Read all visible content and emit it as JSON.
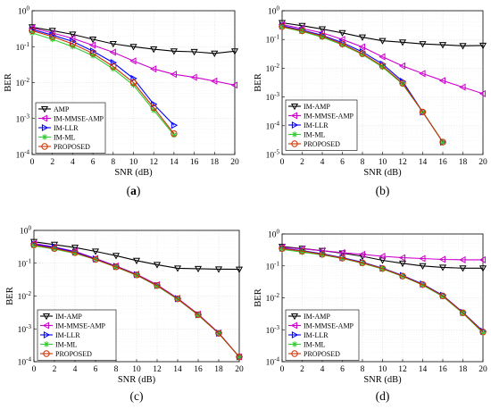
{
  "chart_data": [
    {
      "type": "line",
      "panel_label": "(a)",
      "xlabel": "SNR (dB)",
      "ylabel": "BER",
      "xlim": [
        0,
        20
      ],
      "ylim_log10": [
        -4,
        0
      ],
      "yscale": "log",
      "grid": true,
      "legend_placement": "bottom-left",
      "xticks": [
        "0",
        "2",
        "4",
        "6",
        "8",
        "10",
        "12",
        "14",
        "16",
        "18",
        "20"
      ],
      "yticks": [
        "10^0",
        "10^-1",
        "10^-2",
        "10^-3",
        "10^-4"
      ],
      "series": [
        {
          "name": "AMP",
          "color": "#000000",
          "marker": "tri-down",
          "x": [
            0,
            2,
            4,
            6,
            8,
            10,
            12,
            14,
            16,
            18,
            20
          ],
          "y": [
            0.35,
            0.28,
            0.22,
            0.16,
            0.12,
            0.1,
            0.085,
            0.075,
            0.072,
            0.065,
            0.075
          ]
        },
        {
          "name": "IM-MMSE-AMP",
          "color": "#cc00cc",
          "marker": "tri-left",
          "x": [
            0,
            2,
            4,
            6,
            8,
            10,
            12,
            14,
            16,
            18,
            20
          ],
          "y": [
            0.33,
            0.24,
            0.17,
            0.11,
            0.07,
            0.04,
            0.024,
            0.017,
            0.014,
            0.011,
            0.0085
          ]
        },
        {
          "name": "IM-LLR",
          "color": "#0000ff",
          "marker": "tri-right",
          "x": [
            0,
            2,
            4,
            6,
            8,
            10,
            12,
            14
          ],
          "y": [
            0.3,
            0.21,
            0.14,
            0.075,
            0.036,
            0.013,
            0.0025,
            0.00065
          ]
        },
        {
          "name": "IM-ML",
          "color": "#33cc33",
          "marker": "asterisk",
          "x": [
            0,
            2,
            4,
            6,
            8,
            10,
            12,
            14
          ],
          "y": [
            0.24,
            0.16,
            0.1,
            0.056,
            0.024,
            0.0085,
            0.0017,
            0.00035
          ]
        },
        {
          "name": "PROPOSED",
          "color": "#cc3300",
          "marker": "circle",
          "x": [
            0,
            2,
            4,
            6,
            8,
            10,
            12,
            14
          ],
          "y": [
            0.28,
            0.19,
            0.12,
            0.065,
            0.028,
            0.01,
            0.002,
            0.00038
          ]
        }
      ]
    },
    {
      "type": "line",
      "panel_label": "(b)",
      "xlabel": "SNR (dB)",
      "ylabel": "BER",
      "xlim": [
        0,
        20
      ],
      "ylim_log10": [
        -5,
        0
      ],
      "yscale": "log",
      "grid": true,
      "legend_placement": "bottom-left",
      "xticks": [
        "0",
        "2",
        "4",
        "6",
        "8",
        "10",
        "12",
        "14",
        "16",
        "18",
        "20"
      ],
      "yticks": [
        "10^0",
        "10^-1",
        "10^-2",
        "10^-3",
        "10^-4",
        "10^-5"
      ],
      "series": [
        {
          "name": "IM-AMP",
          "color": "#000000",
          "marker": "tri-down",
          "x": [
            0,
            2,
            4,
            6,
            8,
            10,
            12,
            14,
            16,
            18,
            20
          ],
          "y": [
            0.38,
            0.3,
            0.23,
            0.17,
            0.12,
            0.09,
            0.08,
            0.07,
            0.065,
            0.06,
            0.062
          ]
        },
        {
          "name": "IM-MMSE-AMP",
          "color": "#cc00cc",
          "marker": "tri-left",
          "x": [
            0,
            2,
            4,
            6,
            8,
            10,
            12,
            14,
            16,
            18,
            20
          ],
          "y": [
            0.33,
            0.24,
            0.17,
            0.1,
            0.055,
            0.025,
            0.012,
            0.0065,
            0.0037,
            0.0022,
            0.0013
          ]
        },
        {
          "name": "IM-LLR",
          "color": "#0000ff",
          "marker": "tri-right",
          "x": [
            0,
            2,
            4,
            6,
            8,
            10,
            12,
            14,
            16
          ],
          "y": [
            0.3,
            0.21,
            0.14,
            0.078,
            0.037,
            0.014,
            0.0035,
            0.0003,
            2.7e-05
          ]
        },
        {
          "name": "IM-ML",
          "color": "#33cc33",
          "marker": "asterisk",
          "x": [
            0,
            2,
            4,
            6,
            8,
            10,
            12,
            14,
            16
          ],
          "y": [
            0.27,
            0.19,
            0.12,
            0.065,
            0.03,
            0.011,
            0.0028,
            0.0003,
            2.7e-05
          ]
        },
        {
          "name": "PROPOSED",
          "color": "#cc3300",
          "marker": "circle",
          "x": [
            0,
            2,
            4,
            6,
            8,
            10,
            12,
            14,
            16
          ],
          "y": [
            0.28,
            0.2,
            0.13,
            0.07,
            0.032,
            0.012,
            0.003,
            0.0003,
            2.7e-05
          ]
        }
      ]
    },
    {
      "type": "line",
      "panel_label": "(c)",
      "xlabel": "SNR (dB)",
      "ylabel": "BER",
      "xlim": [
        0,
        20
      ],
      "ylim_log10": [
        -4,
        0
      ],
      "yscale": "log",
      "grid": true,
      "legend_placement": "bottom-left",
      "xticks": [
        "0",
        "2",
        "4",
        "6",
        "8",
        "10",
        "12",
        "14",
        "16",
        "18",
        "20"
      ],
      "yticks": [
        "10^0",
        "10^-1",
        "10^-2",
        "10^-3",
        "10^-4"
      ],
      "series": [
        {
          "name": "IM-AMP",
          "color": "#000000",
          "marker": "tri-down",
          "x": [
            0,
            2,
            4,
            6,
            8,
            10,
            12,
            14,
            16,
            18,
            20
          ],
          "y": [
            0.45,
            0.37,
            0.3,
            0.23,
            0.17,
            0.12,
            0.09,
            0.07,
            0.068,
            0.066,
            0.065
          ]
        },
        {
          "name": "IM-MMSE-AMP",
          "color": "#cc00cc",
          "marker": "tri-left",
          "x": [
            0,
            2,
            4,
            6,
            8,
            10,
            12,
            14,
            16,
            18,
            20
          ],
          "y": [
            0.4,
            0.31,
            0.23,
            0.14,
            0.082,
            0.046,
            0.022,
            0.0085,
            0.0028,
            0.00075,
            0.00014
          ]
        },
        {
          "name": "IM-LLR",
          "color": "#0000ff",
          "marker": "tri-right",
          "x": [
            0,
            2,
            4,
            6,
            8,
            10,
            12,
            14,
            16,
            18,
            20
          ],
          "y": [
            0.38,
            0.3,
            0.22,
            0.135,
            0.08,
            0.045,
            0.021,
            0.0083,
            0.0027,
            0.00074,
            0.00014
          ]
        },
        {
          "name": "IM-ML",
          "color": "#33cc33",
          "marker": "asterisk",
          "x": [
            0,
            2,
            4,
            6,
            8,
            10,
            12,
            14,
            16,
            18,
            20
          ],
          "y": [
            0.34,
            0.27,
            0.2,
            0.13,
            0.076,
            0.043,
            0.02,
            0.008,
            0.0026,
            0.00072,
            0.00014
          ]
        },
        {
          "name": "PROPOSED",
          "color": "#cc3300",
          "marker": "circle",
          "x": [
            0,
            2,
            4,
            6,
            8,
            10,
            12,
            14,
            16,
            18,
            20
          ],
          "y": [
            0.36,
            0.28,
            0.21,
            0.13,
            0.078,
            0.044,
            0.021,
            0.0082,
            0.0027,
            0.00073,
            0.00014
          ]
        }
      ]
    },
    {
      "type": "line",
      "panel_label": "(d)",
      "xlabel": "SNR (dB)",
      "ylabel": "BER",
      "xlim": [
        0,
        20
      ],
      "ylim_log10": [
        -4,
        0
      ],
      "yscale": "log",
      "grid": true,
      "legend_placement": "bottom-left",
      "xticks": [
        "0",
        "2",
        "4",
        "6",
        "8",
        "10",
        "12",
        "14",
        "16",
        "18",
        "20"
      ],
      "yticks": [
        "10^0",
        "10^-1",
        "10^-2",
        "10^-3",
        "10^-4"
      ],
      "series": [
        {
          "name": "IM-AMP",
          "color": "#000000",
          "marker": "tri-down",
          "x": [
            0,
            2,
            4,
            6,
            8,
            10,
            12,
            14,
            16,
            18,
            20
          ],
          "y": [
            0.4,
            0.35,
            0.3,
            0.25,
            0.2,
            0.15,
            0.12,
            0.1,
            0.09,
            0.085,
            0.085
          ]
        },
        {
          "name": "IM-MMSE-AMP",
          "color": "#cc00cc",
          "marker": "tri-left",
          "x": [
            0,
            2,
            4,
            6,
            8,
            10,
            12,
            14,
            16,
            18,
            20
          ],
          "y": [
            0.38,
            0.34,
            0.3,
            0.26,
            0.23,
            0.2,
            0.18,
            0.17,
            0.16,
            0.155,
            0.155
          ]
        },
        {
          "name": "IM-LLR",
          "color": "#0000ff",
          "marker": "tri-right",
          "x": [
            0,
            2,
            4,
            6,
            8,
            10,
            12,
            14,
            16,
            18,
            20
          ],
          "y": [
            0.36,
            0.3,
            0.24,
            0.18,
            0.13,
            0.085,
            0.05,
            0.027,
            0.012,
            0.0035,
            0.0009
          ]
        },
        {
          "name": "IM-ML",
          "color": "#33cc33",
          "marker": "asterisk",
          "x": [
            0,
            2,
            4,
            6,
            8,
            10,
            12,
            14,
            16,
            18,
            20
          ],
          "y": [
            0.33,
            0.27,
            0.22,
            0.17,
            0.12,
            0.08,
            0.047,
            0.025,
            0.011,
            0.0033,
            0.0008
          ]
        },
        {
          "name": "PROPOSED",
          "color": "#cc3300",
          "marker": "circle",
          "x": [
            0,
            2,
            4,
            6,
            8,
            10,
            12,
            14,
            16,
            18,
            20
          ],
          "y": [
            0.35,
            0.29,
            0.23,
            0.175,
            0.125,
            0.083,
            0.048,
            0.026,
            0.0115,
            0.0034,
            0.00085
          ]
        }
      ]
    }
  ]
}
